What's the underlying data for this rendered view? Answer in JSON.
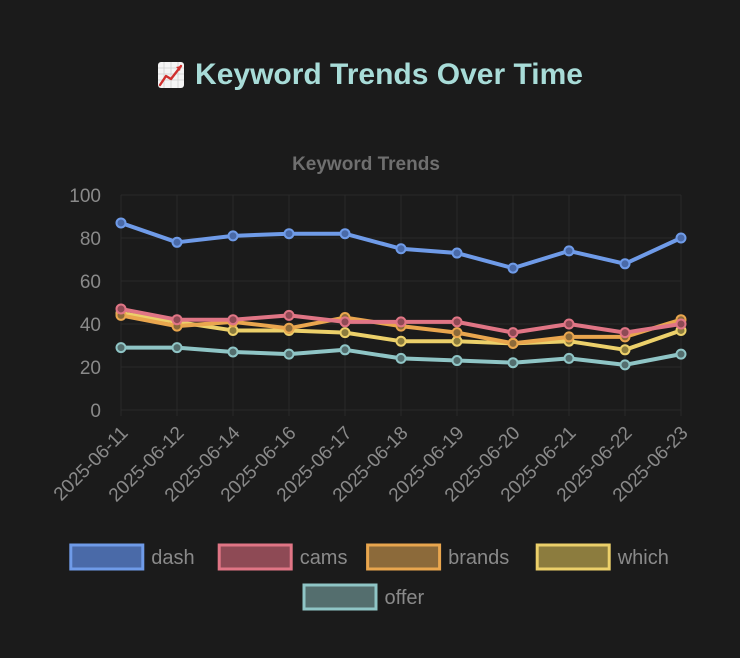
{
  "header": {
    "emoji_icon": "chart-increasing-icon",
    "title": "Keyword Trends Over Time"
  },
  "chart_data": {
    "type": "line",
    "title": "Keyword Trends",
    "xlabel": "",
    "ylabel": "",
    "ylim": [
      0,
      100
    ],
    "yticks": [
      0,
      20,
      40,
      60,
      80,
      100
    ],
    "categories": [
      "2025-06-11",
      "2025-06-12",
      "2025-06-14",
      "2025-06-16",
      "2025-06-17",
      "2025-06-18",
      "2025-06-19",
      "2025-06-20",
      "2025-06-21",
      "2025-06-22",
      "2025-06-23"
    ],
    "grid": true,
    "legend_position": "bottom",
    "series": [
      {
        "name": "dash",
        "color": "#6f9be8",
        "fill": "#4a6aa8",
        "values": [
          87,
          78,
          81,
          82,
          82,
          75,
          73,
          66,
          74,
          68,
          80
        ]
      },
      {
        "name": "cams",
        "color": "#e07585",
        "fill": "#8e4a55",
        "values": [
          47,
          42,
          42,
          44,
          41,
          41,
          41,
          36,
          40,
          36,
          40
        ]
      },
      {
        "name": "brands",
        "color": "#e9a64e",
        "fill": "#8c6a3a",
        "values": [
          44,
          39,
          41,
          38,
          43,
          39,
          36,
          31,
          34,
          34,
          42
        ]
      },
      {
        "name": "which",
        "color": "#ecd06a",
        "fill": "#8c7c3e",
        "values": [
          45,
          41,
          37,
          37,
          36,
          32,
          32,
          31,
          32,
          28,
          37
        ]
      },
      {
        "name": "offer",
        "color": "#8fc5c6",
        "fill": "#546e6e",
        "values": [
          29,
          29,
          27,
          26,
          28,
          24,
          23,
          22,
          24,
          21,
          26
        ]
      }
    ]
  }
}
